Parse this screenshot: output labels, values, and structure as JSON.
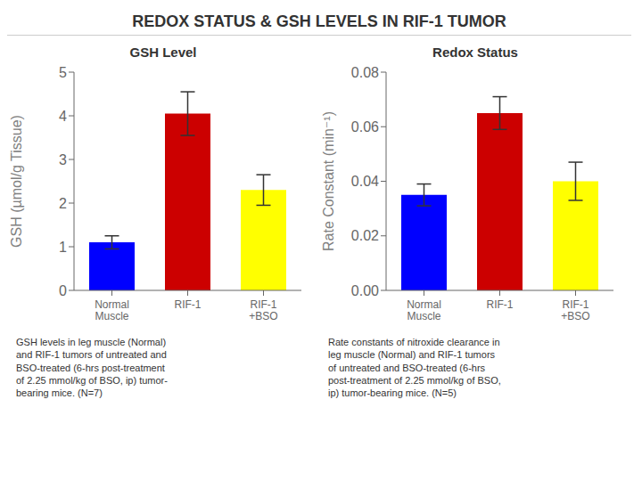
{
  "title": "REDOX STATUS & GSH LEVELS IN RIF-1 TUMOR",
  "chart_data": [
    {
      "type": "bar",
      "title": "GSH Level",
      "categories": [
        "Normal\nMuscle",
        "RIF-1",
        "RIF-1\n+BSO"
      ],
      "values": [
        1.1,
        4.05,
        2.3
      ],
      "errors": [
        0.15,
        0.5,
        0.35
      ],
      "colors": [
        "#0000FF",
        "#CC0000",
        "#FFFF00"
      ],
      "ylabel": "GSH (µmol/g Tissue)",
      "ylim": [
        0,
        5
      ],
      "yticks": [
        0,
        1,
        2,
        3,
        4,
        5
      ],
      "grid": false,
      "caption": "GSH levels in leg muscle (Normal)\nand RIF-1 tumors of untreated and\nBSO-treated (6-hrs post-treatment\nof 2.25 mmol/kg of BSO, ip) tumor-\nbearing mice.  (N=7)"
    },
    {
      "type": "bar",
      "title": "Redox Status",
      "categories": [
        "Normal\nMuscle",
        "RIF-1",
        "RIF-1\n+BSO"
      ],
      "values": [
        0.035,
        0.065,
        0.04
      ],
      "errors": [
        0.004,
        0.006,
        0.007
      ],
      "colors": [
        "#0000FF",
        "#CC0000",
        "#FFFF00"
      ],
      "ylabel": "Rate Constant (min⁻¹)",
      "ylim": [
        0,
        0.08
      ],
      "yticks": [
        {
          "value": 0,
          "label": "0.00"
        },
        0.02,
        0.04,
        0.06,
        0.08
      ],
      "grid": false,
      "caption": "Rate constants of nitroxide clearance in\nleg muscle (Normal) and RIF-1 tumors\nof untreated and BSO-treated (6-hrs\npost-treatment of 2.25 mmol/kg of BSO,\nip) tumor-bearing mice. (N=5)"
    }
  ]
}
